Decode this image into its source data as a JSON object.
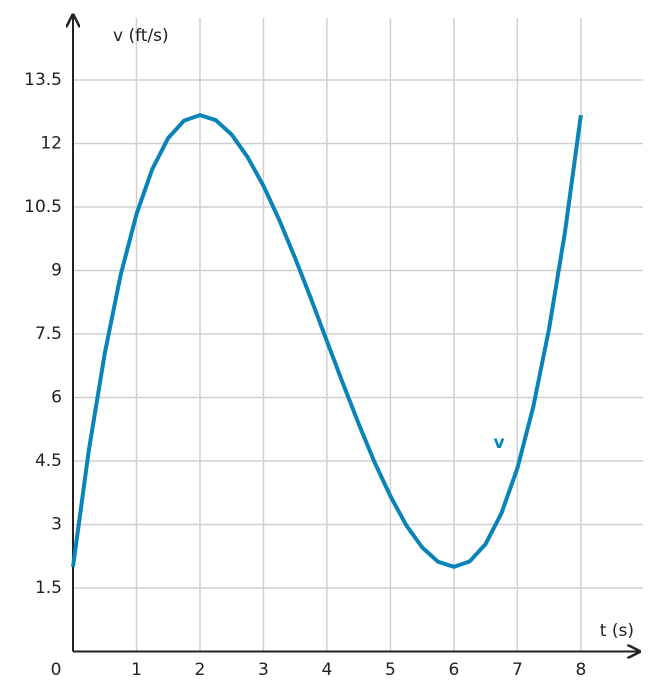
{
  "chart_data": {
    "type": "line",
    "x_label": "t (s)",
    "y_label": "v (ft/s)",
    "x": [
      0,
      0.25,
      0.5,
      0.75,
      1,
      1.25,
      1.5,
      1.75,
      2,
      2.25,
      2.5,
      2.75,
      3,
      3.25,
      3.5,
      3.75,
      4,
      4.25,
      4.5,
      4.75,
      5,
      5.25,
      5.5,
      5.75,
      6,
      6.25,
      6.5,
      6.75,
      7,
      7.25,
      7.5,
      7.75,
      8
    ],
    "series": [
      {
        "name": "v",
        "color": "#0a84b8",
        "values": [
          2,
          4.76,
          7.04,
          8.89,
          10.33,
          11.4,
          12.13,
          12.54,
          12.67,
          12.55,
          12.21,
          11.68,
          11,
          10.19,
          9.29,
          8.33,
          7.33,
          6.34,
          5.38,
          4.47,
          3.67,
          2.98,
          2.46,
          2.12,
          2,
          2.13,
          2.54,
          3.27,
          4.33,
          5.78,
          7.63,
          9.91,
          12.67
        ]
      }
    ],
    "xlim": [
      0,
      8.9
    ],
    "ylim": [
      0,
      15
    ],
    "xticks": [
      0,
      1,
      2,
      3,
      4,
      5,
      6,
      7,
      8
    ],
    "yticks": [
      1.5,
      3,
      4.5,
      6,
      7.5,
      9,
      10.5,
      12,
      13.5
    ],
    "grid": true
  }
}
